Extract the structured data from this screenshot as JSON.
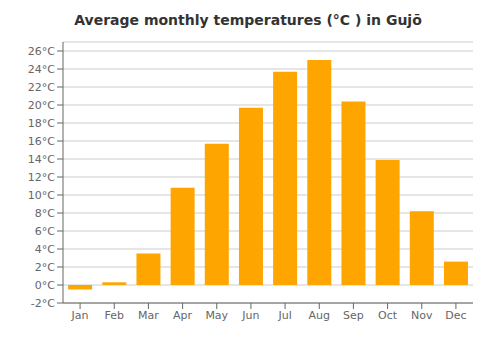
{
  "chart_data": {
    "type": "bar",
    "title": "Average monthly temperatures (°C ) in Gujō",
    "categories": [
      "Jan",
      "Feb",
      "Mar",
      "Apr",
      "May",
      "Jun",
      "Jul",
      "Aug",
      "Sep",
      "Oct",
      "Nov",
      "Dec"
    ],
    "values": [
      -0.5,
      0.3,
      3.5,
      10.8,
      15.7,
      19.7,
      23.7,
      25.0,
      20.4,
      13.9,
      8.2,
      2.6
    ],
    "color": "#FFA500",
    "ylim": [
      -2,
      27
    ],
    "yticks": [
      {
        "value": -2,
        "label": "-2°C"
      },
      {
        "value": 0,
        "label": "0°C"
      },
      {
        "value": 2,
        "label": "2°C"
      },
      {
        "value": 4,
        "label": "4°C"
      },
      {
        "value": 6,
        "label": "6°C"
      },
      {
        "value": 8,
        "label": "8°C"
      },
      {
        "value": 10,
        "label": "10°C"
      },
      {
        "value": 12,
        "label": "12°C"
      },
      {
        "value": 14,
        "label": "14°C"
      },
      {
        "value": 16,
        "label": "16°C"
      },
      {
        "value": 18,
        "label": "18°C"
      },
      {
        "value": 20,
        "label": "20°C"
      },
      {
        "value": 22,
        "label": "22°C"
      },
      {
        "value": 24,
        "label": "24°C"
      },
      {
        "value": 26,
        "label": "26°C"
      }
    ],
    "grid": true
  }
}
